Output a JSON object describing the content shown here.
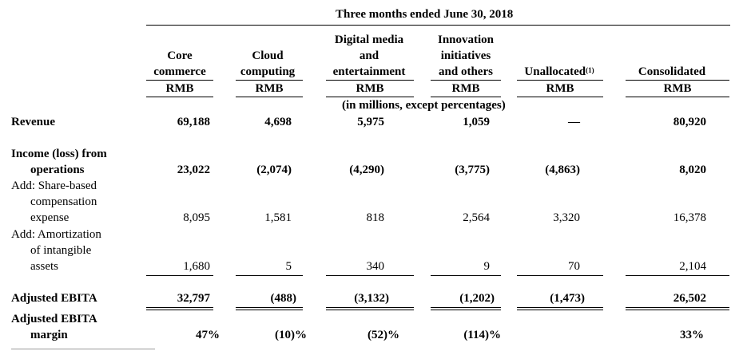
{
  "period_title": "Three months ended June 30, 2018",
  "columns": [
    {
      "header": [
        "Core",
        "commerce"
      ],
      "currency": "RMB"
    },
    {
      "header": [
        "Cloud",
        "computing"
      ],
      "currency": "RMB"
    },
    {
      "header": [
        "Digital media",
        "and",
        "entertainment"
      ],
      "currency": "RMB"
    },
    {
      "header": [
        "Innovation",
        "initiatives",
        "and others"
      ],
      "currency": "RMB"
    },
    {
      "header": [
        "Unallocated"
      ],
      "header_note": "(1)",
      "currency": "RMB"
    },
    {
      "header": [
        "Consolidated"
      ],
      "currency": "RMB"
    }
  ],
  "units_note": "(in millions, except percentages)",
  "rows": {
    "revenue": {
      "label": "Revenue",
      "values": [
        "69,188",
        "4,698",
        "5,975",
        "1,059",
        "—",
        "80,920"
      ]
    },
    "income": {
      "label": [
        "Income (loss) from",
        "operations"
      ],
      "values": [
        "23,022",
        "(2,074)",
        "(4,290)",
        "(3,775)",
        "(4,863)",
        "8,020"
      ]
    },
    "sbc": {
      "label": [
        "Add: Share-based",
        "compensation",
        "expense"
      ],
      "values": [
        "8,095",
        "1,581",
        "818",
        "2,564",
        "3,320",
        "16,378"
      ]
    },
    "amort": {
      "label": [
        "Add: Amortization",
        "of intangible",
        "assets"
      ],
      "values": [
        "1,680",
        "5",
        "340",
        "9",
        "70",
        "2,104"
      ]
    },
    "ebita": {
      "label": "Adjusted EBITA",
      "values": [
        "32,797",
        "(488)",
        "(3,132)",
        "(1,202)",
        "(1,473)",
        "26,502"
      ]
    },
    "margin": {
      "label": [
        "Adjusted EBITA",
        "margin"
      ],
      "values": [
        "47%",
        "(10)%",
        "(52)%",
        "(114)%",
        "",
        "33%"
      ]
    }
  }
}
